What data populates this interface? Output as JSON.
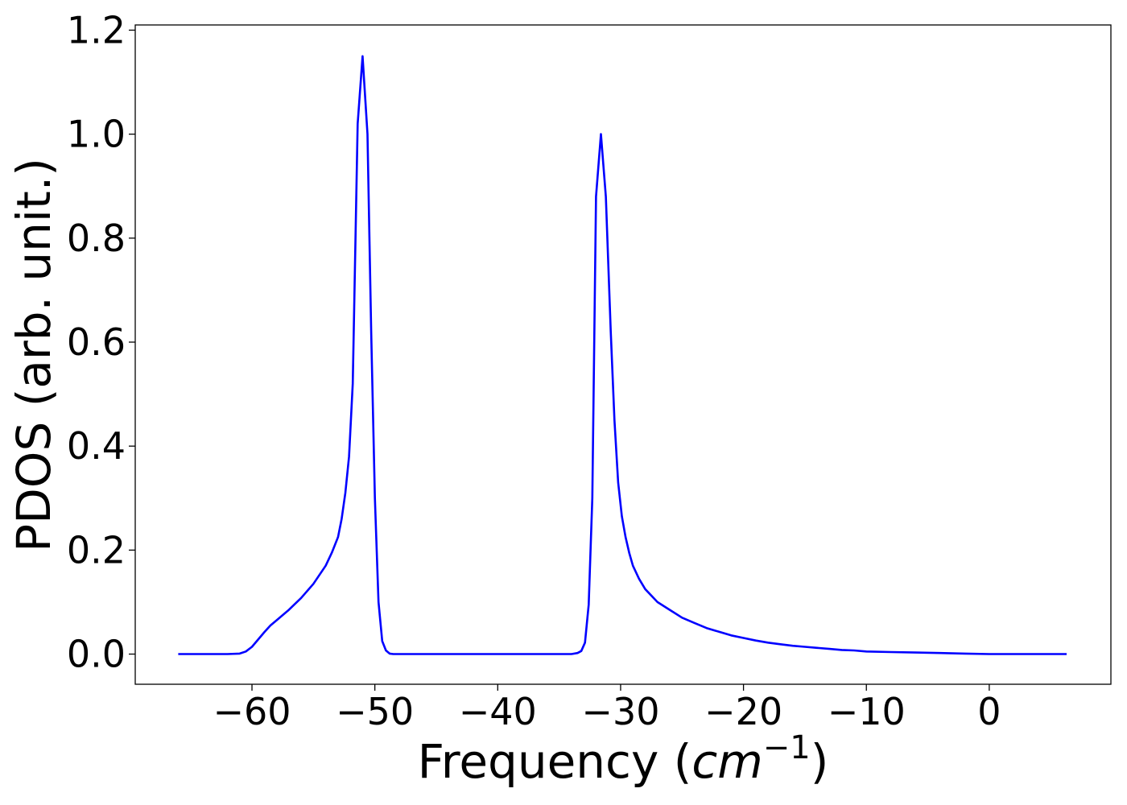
{
  "chart_data": {
    "type": "line",
    "title": "",
    "xlabel_main": "Frequency (",
    "xlabel_math_base": "cm",
    "xlabel_math_exp": "−1",
    "xlabel_close": ")",
    "ylabel": "PDOS (arb. unit.)",
    "xlim": [
      -69.5,
      9.9
    ],
    "ylim": [
      -0.058,
      1.21
    ],
    "x_ticks": [
      -60,
      -50,
      -40,
      -30,
      -20,
      -10,
      0
    ],
    "x_tick_labels": [
      "−60",
      "−50",
      "−40",
      "−30",
      "−20",
      "−10",
      "0"
    ],
    "y_ticks": [
      0.0,
      0.2,
      0.4,
      0.6,
      0.8,
      1.0,
      1.2
    ],
    "y_tick_labels": [
      "0.0",
      "0.2",
      "0.4",
      "0.6",
      "0.8",
      "1.0",
      "1.2"
    ],
    "grid": false,
    "legend": "none",
    "series": [
      {
        "color": "#0000ff",
        "x": [
          -66,
          -64,
          -62,
          -61,
          -60.5,
          -60,
          -59.5,
          -59,
          -58.5,
          -58,
          -57,
          -56,
          -55,
          -54,
          -53.5,
          -53,
          -52.7,
          -52.4,
          -52.1,
          -51.8,
          -51.4,
          -51.0,
          -50.6,
          -50.3,
          -50.0,
          -49.7,
          -49.4,
          -49.1,
          -48.8,
          -48.5,
          -48,
          -46,
          -44,
          -42,
          -40,
          -38,
          -36,
          -34,
          -33.5,
          -33.2,
          -32.9,
          -32.6,
          -32.3,
          -32.0,
          -31.6,
          -31.2,
          -30.8,
          -30.5,
          -30.2,
          -29.9,
          -29.6,
          -29.3,
          -29.0,
          -28.5,
          -28,
          -27,
          -26,
          -25,
          -24,
          -23,
          -22,
          -21,
          -20,
          -19,
          -18,
          -17,
          -16,
          -15,
          -14,
          -13,
          -12,
          -11,
          -10,
          -8,
          -6,
          -4,
          -2,
          0,
          2,
          4,
          6.3
        ],
        "y": [
          0,
          0,
          0,
          0.001,
          0.005,
          0.014,
          0.028,
          0.042,
          0.055,
          0.065,
          0.085,
          0.108,
          0.135,
          0.17,
          0.195,
          0.225,
          0.26,
          0.31,
          0.38,
          0.52,
          1.02,
          1.15,
          1.0,
          0.62,
          0.3,
          0.1,
          0.025,
          0.007,
          0.001,
          0,
          0,
          0,
          0,
          0,
          0,
          0,
          0,
          0,
          0.002,
          0.006,
          0.022,
          0.095,
          0.3,
          0.88,
          1.0,
          0.88,
          0.62,
          0.45,
          0.33,
          0.265,
          0.225,
          0.195,
          0.17,
          0.145,
          0.125,
          0.1,
          0.085,
          0.07,
          0.06,
          0.05,
          0.043,
          0.036,
          0.031,
          0.026,
          0.022,
          0.019,
          0.016,
          0.014,
          0.012,
          0.01,
          0.008,
          0.007,
          0.005,
          0.004,
          0.003,
          0.002,
          0.001,
          0,
          0,
          0,
          0
        ]
      }
    ]
  }
}
